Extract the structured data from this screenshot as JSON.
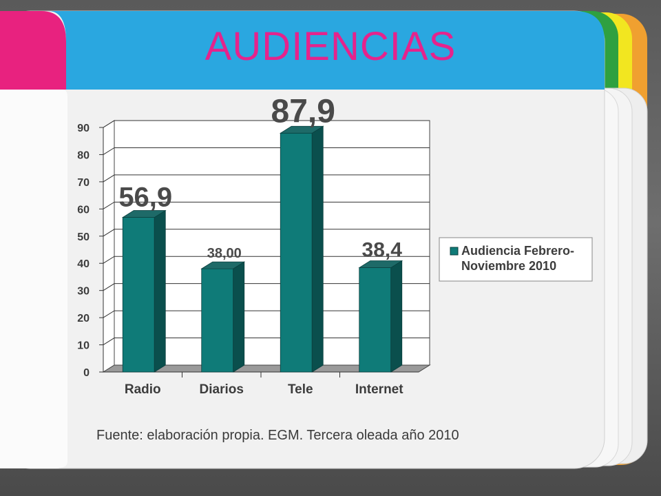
{
  "slide": {
    "title": "AUDIENCIAS",
    "source_note": "Fuente: elaboración propia. EGM. Tercera oleada año 2010"
  },
  "colors": {
    "title": "#e5238c",
    "bar_front": "#0f7b78",
    "bar_side": "#0a4f4d",
    "bar_top": "#1e6a68",
    "tab_pink": "#e8227f",
    "header_blue": "#2aa7e0"
  },
  "chart_data": {
    "type": "bar",
    "categories": [
      "Radio",
      "Diarios",
      "Tele",
      "Internet"
    ],
    "series": [
      {
        "name": "Audiencia Febrero-Noviembre 2010",
        "values": [
          56.9,
          38.0,
          87.9,
          38.4
        ]
      }
    ],
    "data_labels": [
      "56,9",
      "38,00",
      "87,9",
      "38,4"
    ],
    "ylim": [
      0,
      90
    ],
    "yticks": [
      "0",
      "10",
      "20",
      "30",
      "40",
      "50",
      "60",
      "70",
      "80",
      "90"
    ],
    "legend_lines": [
      "Audiencia Febrero-",
      "Noviembre 2010"
    ],
    "legend_position": "right",
    "grid": true,
    "three_d": true
  }
}
